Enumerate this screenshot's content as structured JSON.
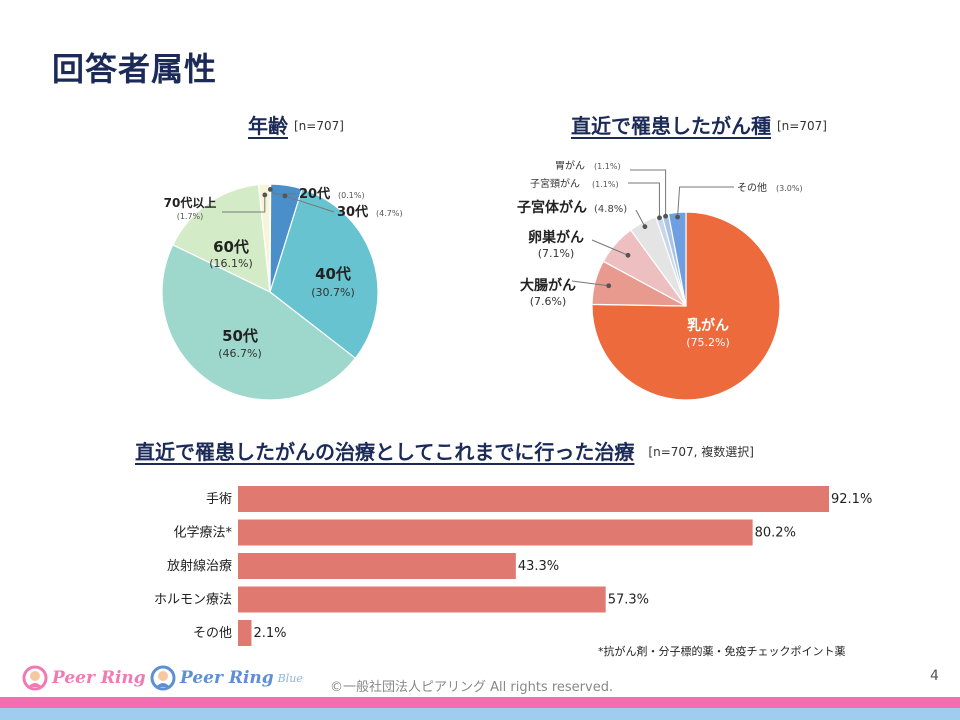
{
  "slide_title": "回答者属性",
  "age_chart": {
    "title": "年齢",
    "n": "[n=707]"
  },
  "cancer_chart": {
    "title": "直近で罹患したがん種",
    "n": "[n=707]"
  },
  "treatment_chart": {
    "title": "直近で罹患したがんの治療としてこれまでに行った治療",
    "n": "[n=707, 複数選択]"
  },
  "chart_data": [
    {
      "type": "pie",
      "title": "年齢",
      "slices": [
        {
          "label": "20代",
          "value": 0.1,
          "pct": "(0.1%)",
          "color": "#5b9bd5"
        },
        {
          "label": "30代",
          "value": 4.7,
          "pct": "(4.7%)",
          "color": "#4a8fc9"
        },
        {
          "label": "40代",
          "value": 30.7,
          "pct": "(30.7%)",
          "color": "#67c3cf"
        },
        {
          "label": "50代",
          "value": 46.7,
          "pct": "(46.7%)",
          "color": "#9ed8cc"
        },
        {
          "label": "60代",
          "value": 16.1,
          "pct": "(16.1%)",
          "color": "#d3ecc7"
        },
        {
          "label": "70代以上",
          "value": 1.7,
          "pct": "(1.7%)",
          "color": "#f7f5d8"
        }
      ]
    },
    {
      "type": "pie",
      "title": "直近で罹患したがん種",
      "slices": [
        {
          "label": "乳がん",
          "value": 75.2,
          "pct": "(75.2%)",
          "color": "#ec6a3c"
        },
        {
          "label": "大腸がん",
          "value": 7.6,
          "pct": "(7.6%)",
          "color": "#e79a8d"
        },
        {
          "label": "卵巣がん",
          "value": 7.1,
          "pct": "(7.1%)",
          "color": "#eebfc0"
        },
        {
          "label": "子宮体がん",
          "value": 4.8,
          "pct": "(4.8%)",
          "color": "#e4e4e4"
        },
        {
          "label": "子宮頸がん",
          "value": 1.1,
          "pct": "(1.1%)",
          "color": "#c9d6e8"
        },
        {
          "label": "胃がん",
          "value": 1.1,
          "pct": "(1.1%)",
          "color": "#a9c4e8"
        },
        {
          "label": "その他",
          "value": 3.0,
          "pct": "(3.0%)",
          "color": "#6f9fe0"
        }
      ]
    },
    {
      "type": "bar",
      "orientation": "horizontal",
      "title": "直近で罹患したがんの治療としてこれまでに行った治療",
      "categories": [
        "手術",
        "化学療法*",
        "放射線治療",
        "ホルモン療法",
        "その他"
      ],
      "values": [
        92.1,
        80.2,
        43.3,
        57.3,
        2.1
      ],
      "value_labels": [
        "92.1%",
        "80.2%",
        "43.3%",
        "57.3%",
        "2.1%"
      ],
      "xlim": [
        0,
        100
      ],
      "color": "#e07a70"
    }
  ],
  "footnote": "*抗がん剤・分子標的薬・免疫チェックポイント薬",
  "copyright": "©一般社団法人ピアリング All rights reserved.",
  "page_number": "4",
  "logos": {
    "logo1": "Peer Ring",
    "logo2": "Peer Ring",
    "logo2_sub": "Blue",
    "logo1_color": "#f27ab3",
    "logo2_color": "#5c8fd6"
  }
}
